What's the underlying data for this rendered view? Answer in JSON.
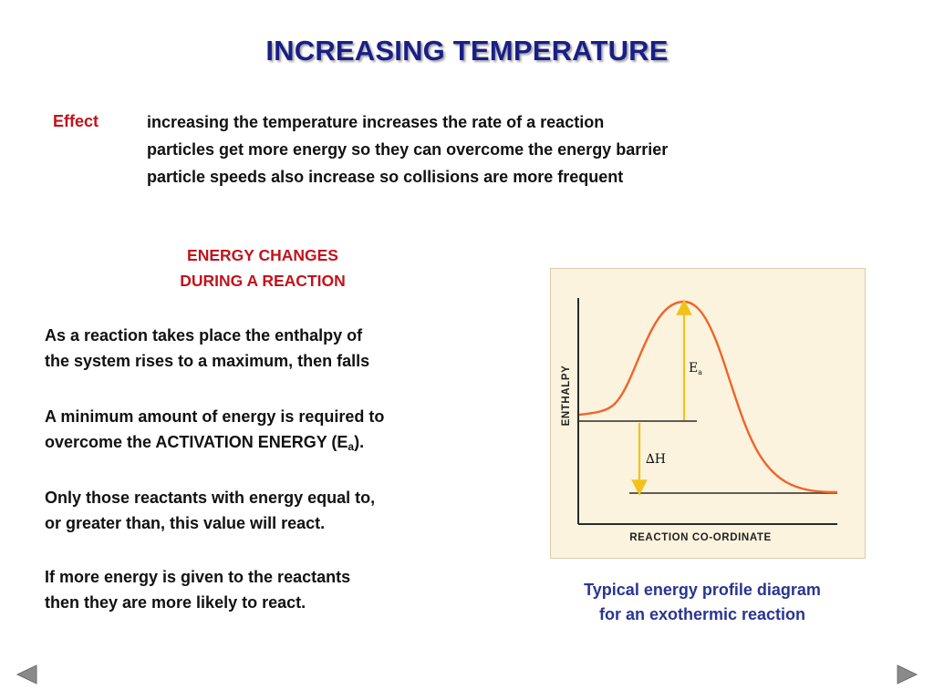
{
  "slide": {
    "title": "INCREASING TEMPERATURE"
  },
  "effect": {
    "label": "Effect",
    "lines": [
      "increasing the temperature increases the rate of a reaction",
      "particles get more energy so they can overcome the energy barrier",
      "particle speeds also increase so collisions are more frequent"
    ]
  },
  "energy_section": {
    "heading_line1": "ENERGY CHANGES",
    "heading_line2": "DURING A REACTION",
    "para1_line1": "As a reaction takes place the enthalpy of",
    "para1_line2": "the system rises to a maximum, then falls",
    "para2_line1": "A minimum amount of energy is required to",
    "para2_line2_prefix": "overcome the ACTIVATION ENERGY (E",
    "para2_line2_sub": "a",
    "para2_line2_suffix": ").",
    "para3_line1": "Only those reactants with energy equal to,",
    "para3_line2": "or greater than, this value will react.",
    "para4_line1": "If more energy is given to the reactants",
    "para4_line2": "then they are more likely to react."
  },
  "diagram": {
    "y_axis_label": "ENTHALPY",
    "x_axis_label": "REACTION CO-ORDINATE",
    "ea_label": "E",
    "ea_sub": "a",
    "dh_label": "∆H",
    "caption_line1": "Typical energy profile diagram",
    "caption_line2": "for an exothermic reaction"
  },
  "colors": {
    "title": "#1a1f86",
    "accent_red": "#c0141c",
    "caption_blue": "#2a3591",
    "curve": "#f0642a",
    "arrow": "#f2c21a",
    "diagram_bg": "#fbf3dd",
    "nav_button": "#8a8a8a"
  },
  "navigation": {
    "prev_icon": "triangle-left-icon",
    "next_icon": "triangle-right-icon"
  }
}
